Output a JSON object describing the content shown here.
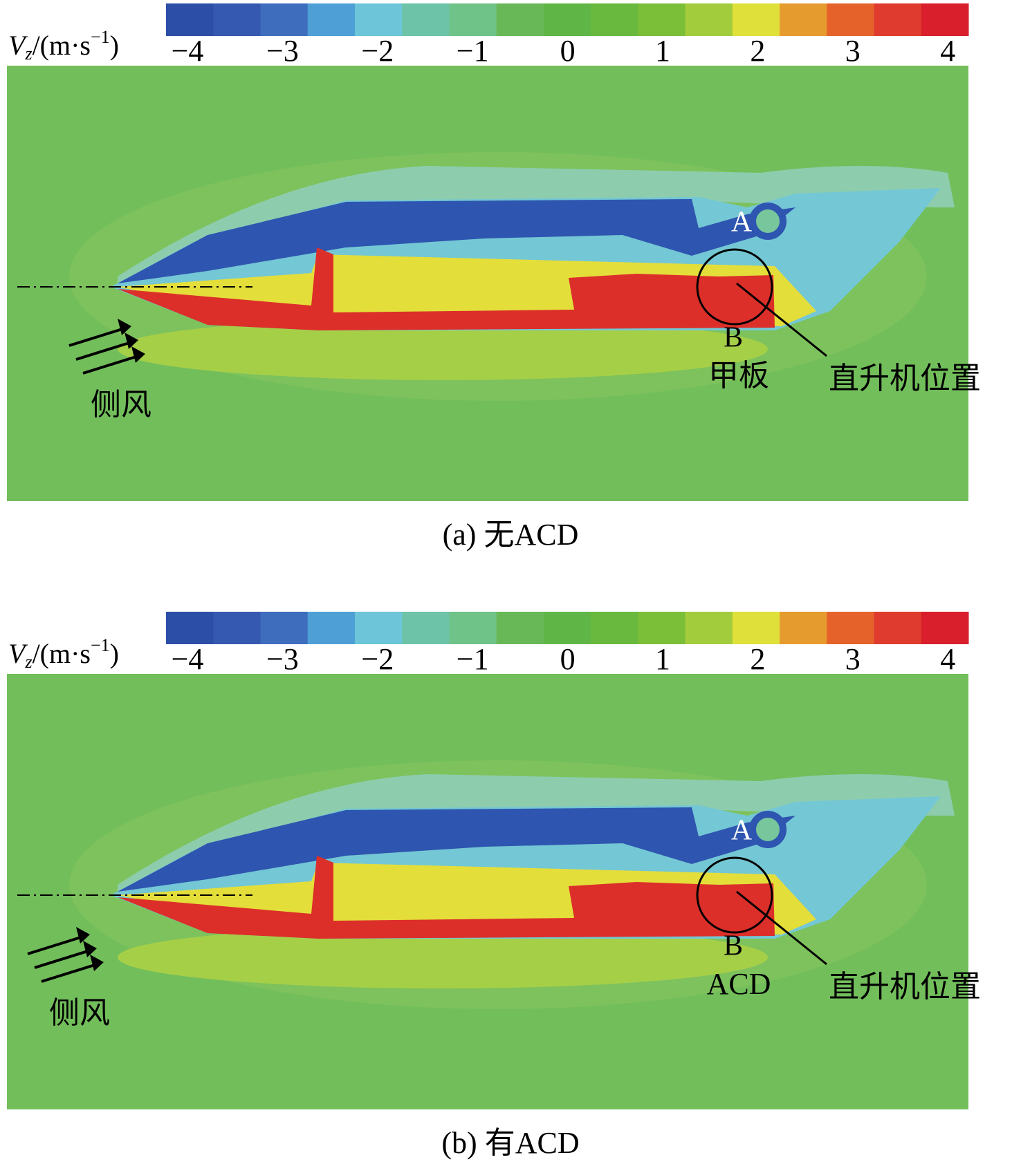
{
  "panels": [
    {
      "colorbar": {
        "label": {
          "var": "V",
          "sub": "z",
          "unit_open": "/(m·s",
          "sup": "−1",
          "unit_close": ")"
        },
        "ticks": [
          "−4",
          "−3",
          "−2",
          "−1",
          "0",
          "1",
          "2",
          "3",
          "4"
        ]
      },
      "annotations": {
        "point_a": "A",
        "point_b": "B",
        "device": "甲板",
        "helicopter": "直升机位置",
        "wind": "侧风"
      },
      "caption": "(a) 无ACD"
    },
    {
      "colorbar": {
        "label": {
          "var": "V",
          "sub": "z",
          "unit_open": "/(m·s",
          "sup": "−1",
          "unit_close": ")"
        },
        "ticks": [
          "−4",
          "−3",
          "−2",
          "−1",
          "0",
          "1",
          "2",
          "3",
          "4"
        ]
      },
      "annotations": {
        "point_a": "A",
        "point_b": "B",
        "device": "ACD",
        "helicopter": "直升机位置",
        "wind": "侧风"
      },
      "caption": "(b) 有ACD"
    }
  ]
}
